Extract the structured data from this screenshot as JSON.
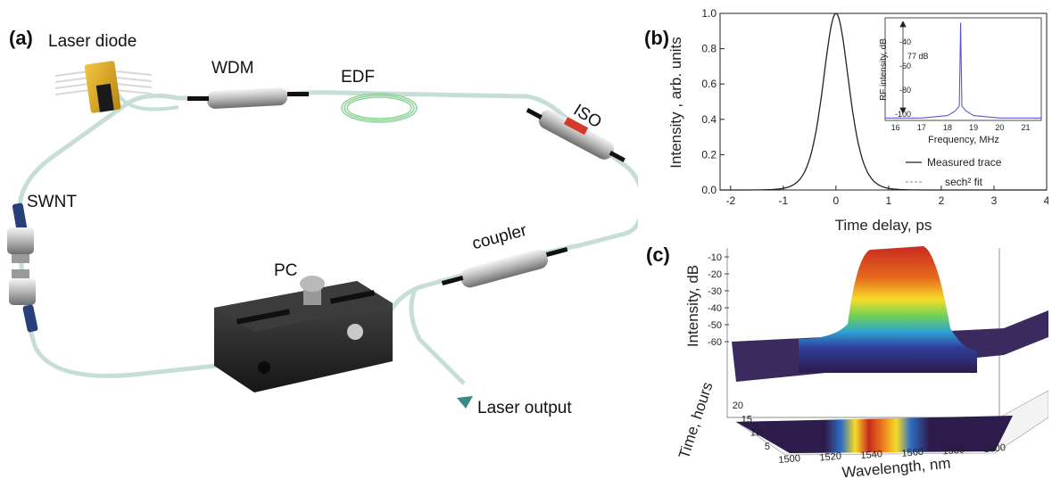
{
  "panel_a": {
    "letter": "(a)",
    "labels": {
      "laser_diode": "Laser diode",
      "wdm": "WDM",
      "edf": "EDF",
      "iso": "ISO",
      "swnt": "SWNT",
      "pc": "PC",
      "coupler": "coupler",
      "laser_output": "Laser  output"
    }
  },
  "panel_b": {
    "letter": "(b)",
    "xlabel": "Time delay, ps",
    "ylabel": "Intensity , arb. units",
    "legend": [
      "Measured trace",
      "sech² fit"
    ],
    "inset": {
      "xlabel": "Frequency, MHz",
      "ylabel": "RF intensity, dB",
      "annotation": "77 dB"
    }
  },
  "panel_c": {
    "letter": "(c)",
    "zlabel": "Intensity, dB",
    "ylabel": "Time, hours",
    "xlabel": "Wavelength, nm"
  },
  "colors": {
    "fiber": "#c7ded8",
    "line": "#222222",
    "inset_trace": "#5a5ad0"
  },
  "chart_data": [
    {
      "type": "line",
      "x": [
        -2,
        -1.5,
        -1,
        -0.75,
        -0.5,
        -0.3,
        -0.15,
        0,
        0.15,
        0.3,
        0.5,
        0.75,
        1,
        1.5,
        2,
        3,
        4
      ],
      "series": [
        {
          "name": "Measured trace",
          "values": [
            0,
            0.01,
            0.05,
            0.14,
            0.4,
            0.72,
            0.92,
            1.0,
            0.92,
            0.72,
            0.4,
            0.14,
            0.05,
            0.01,
            0,
            0,
            0
          ]
        }
      ],
      "xlabel": "Time delay, ps",
      "ylabel": "Intensity , arb. units",
      "xlim": [
        -2.2,
        4
      ],
      "ylim": [
        0,
        1.0
      ],
      "xticks": [
        -2,
        -1,
        0,
        1,
        2,
        3,
        4
      ],
      "yticks": [
        0.0,
        0.2,
        0.4,
        0.6,
        0.8,
        1.0
      ],
      "legend": "bottom-right"
    },
    {
      "type": "line",
      "x": [
        15.6,
        16,
        17,
        18,
        18.3,
        18.45,
        18.5,
        18.55,
        18.7,
        19,
        20,
        21,
        21.6
      ],
      "series": [
        {
          "values": [
            -103,
            -103,
            -103,
            -101,
            -97,
            -93,
            -24,
            -93,
            -97,
            -101,
            -103,
            -103,
            -103
          ]
        }
      ],
      "xlabel": "Frequency, MHz",
      "ylabel": "RF intensity, dB",
      "xlim": [
        15.6,
        21.6
      ],
      "ylim": [
        -105,
        -20
      ],
      "xticks": [
        16,
        17,
        18,
        19,
        20,
        21
      ],
      "yticks": [
        -40,
        -60,
        -80,
        -100
      ]
    },
    {
      "type": "area",
      "x": [
        1500,
        1520,
        1530,
        1540,
        1545,
        1550,
        1555,
        1560,
        1570,
        1580,
        1600
      ],
      "series": [
        {
          "values": [
            -65,
            -65,
            -62,
            -45,
            -25,
            -12,
            -25,
            -45,
            -62,
            -65,
            -65
          ]
        }
      ],
      "xlabel": "Wavelength, nm",
      "ylabel": "Time, hours",
      "zlabel": "Intensity, dB",
      "xticks": [
        1500,
        1520,
        1540,
        1560,
        1580,
        1600
      ],
      "yticks": [
        5,
        10,
        15,
        20
      ],
      "zticks": [
        -10,
        -20,
        -30,
        -40,
        -50,
        -60
      ]
    }
  ]
}
